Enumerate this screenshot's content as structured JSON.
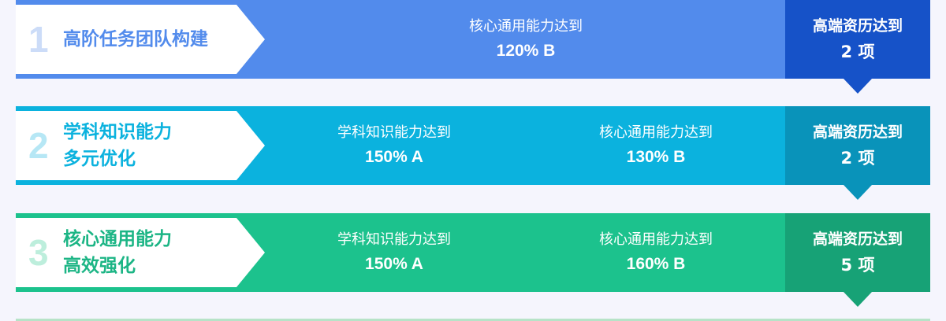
{
  "colors": {
    "blue": "#528bec",
    "blue_dark": "#1652c8",
    "cyan": "#0bb2de",
    "cyan_dark": "#0993ba",
    "green": "#1cc28d",
    "green_dark": "#17a276"
  },
  "rows": [
    {
      "number": "1",
      "title_line1": "高阶任务团队构建",
      "title_line2": "",
      "metrics": [
        {
          "label": "核心通用能力达到",
          "value": "120% B"
        }
      ],
      "goal": {
        "label": "高端资历达到",
        "value": "2 项"
      }
    },
    {
      "number": "2",
      "title_line1": "学科知识能力",
      "title_line2": "多元优化",
      "metrics": [
        {
          "label": "学科知识能力达到",
          "value": "150% A"
        },
        {
          "label": "核心通用能力达到",
          "value": "130% B"
        }
      ],
      "goal": {
        "label": "高端资历达到",
        "value": "2 项"
      }
    },
    {
      "number": "3",
      "title_line1": "核心通用能力",
      "title_line2": "高效强化",
      "metrics": [
        {
          "label": "学科知识能力达到",
          "value": "150% A"
        },
        {
          "label": "核心通用能力达到",
          "value": "160% B"
        }
      ],
      "goal": {
        "label": "高端资历达到",
        "value": "5 项"
      }
    }
  ]
}
